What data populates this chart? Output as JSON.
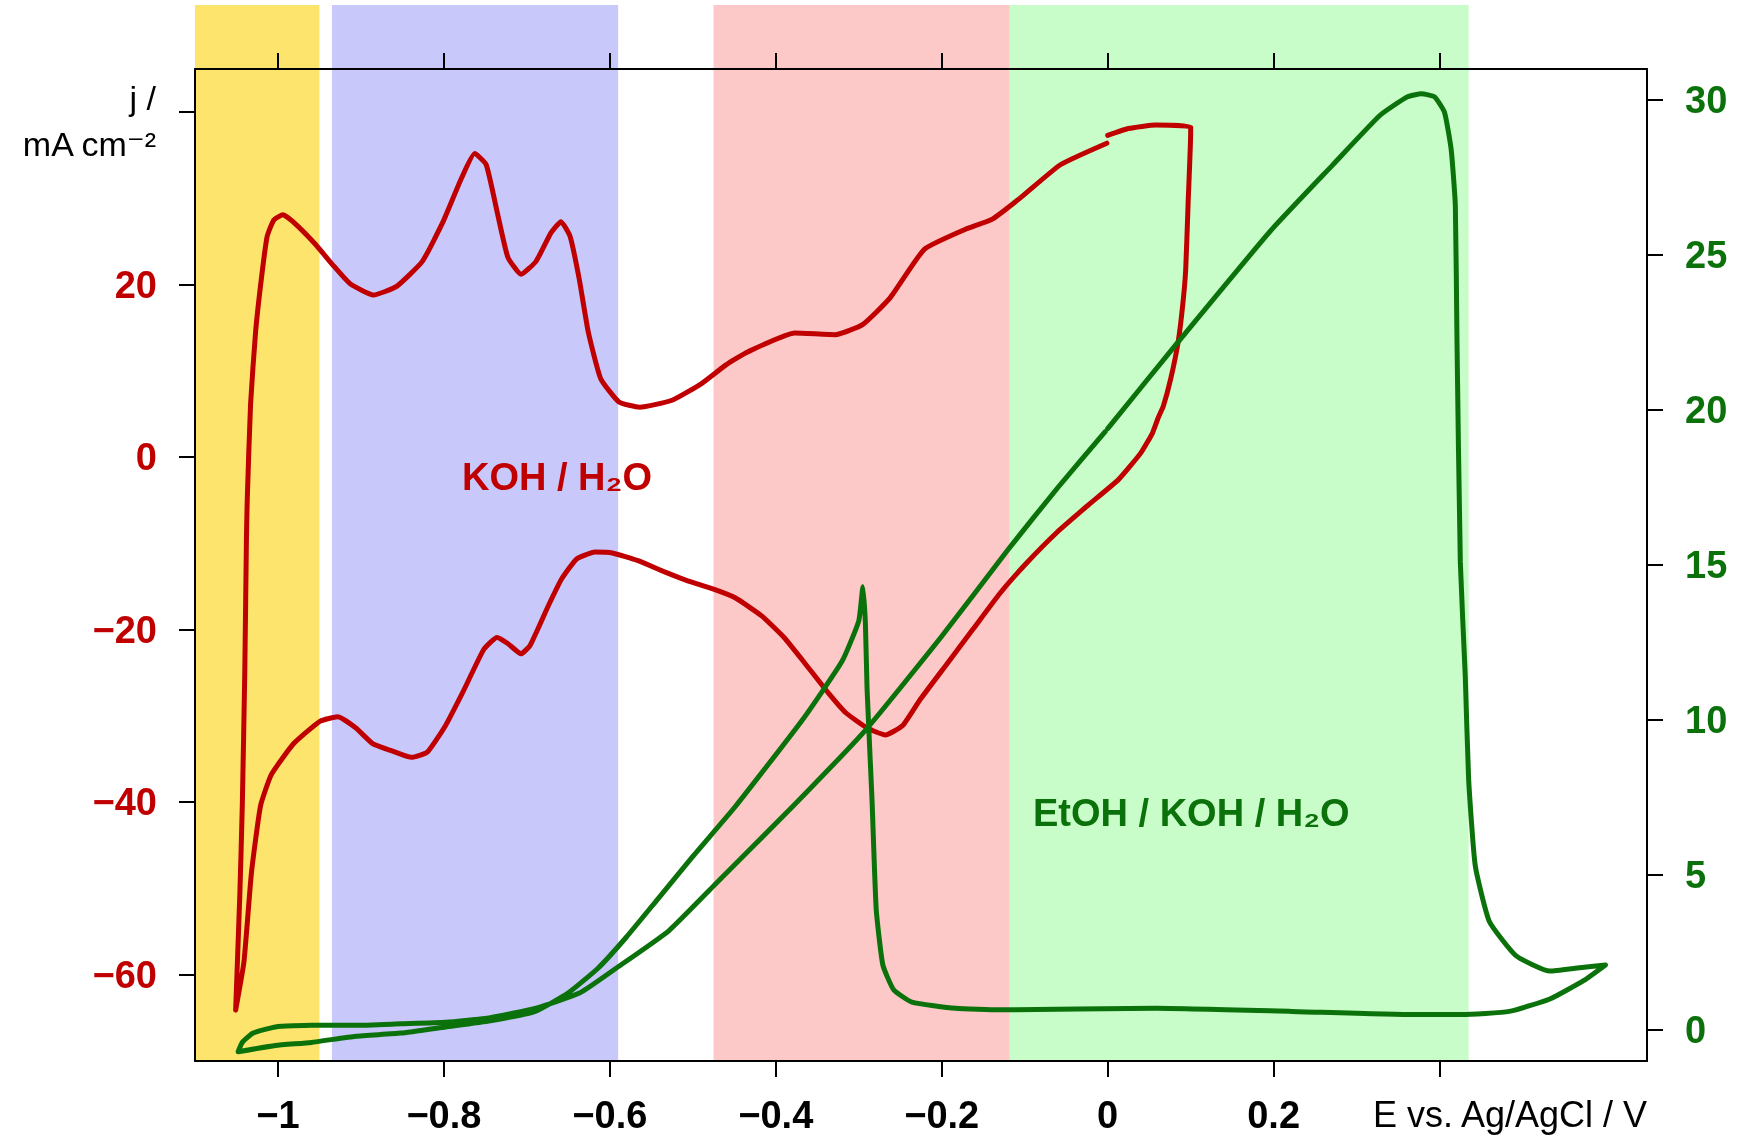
{
  "chart_data": {
    "type": "line",
    "xlabel": "E vs. Ag/AgCl / V",
    "ylabel": "j / mA cm⁻²",
    "xlim": [
      -1.1,
      0.65
    ],
    "xticks": [
      {
        "value": -1,
        "label": "−1"
      },
      {
        "value": -0.8,
        "label": "−0.8"
      },
      {
        "value": -0.6,
        "label": "−0.6"
      },
      {
        "value": -0.4,
        "label": "−0.4"
      },
      {
        "value": -0.2,
        "label": "−0.2"
      },
      0,
      0.2,
      {
        "value": 0.4,
        "label": null
      }
    ],
    "ylim": [
      -70,
      45
    ],
    "yticks": [
      {
        "value": -60,
        "label": "−60"
      },
      {
        "value": -40,
        "label": "−40"
      },
      {
        "value": -20,
        "label": "−20"
      },
      0,
      20,
      {
        "value": 40,
        "label": null
      }
    ],
    "y2lim": [
      -1,
      31
    ],
    "y2ticks": [
      0,
      5,
      10,
      15,
      20,
      25,
      30
    ],
    "grid": false,
    "legend": false,
    "marker": "none",
    "line_style": "solid",
    "bands": [
      {
        "axis": "x",
        "from": -1.1,
        "to": -0.95,
        "color": "#fde46c"
      },
      {
        "axis": "x",
        "from": -0.935,
        "to": -0.59,
        "color": "#c8c8fa"
      },
      {
        "axis": "x",
        "from": -0.475,
        "to": -0.118,
        "color": "#fdc8c8"
      },
      {
        "axis": "x",
        "from": -0.118,
        "to": 0.435,
        "color": "#c8fcc8"
      }
    ],
    "series": [
      {
        "name": "KOH / H₂O",
        "color": "#c00000",
        "x": [
          0.0,
          0.025,
          0.058,
          0.1,
          0.1,
          0.097,
          0.094,
          0.0905,
          0.085,
          0.076,
          0.067,
          0.061,
          0.054,
          0.04,
          0.013,
          -0.024,
          -0.061,
          -0.098,
          -0.13,
          -0.162,
          -0.194,
          -0.226,
          -0.247,
          -0.268,
          -0.29,
          -0.316,
          -0.337,
          -0.364,
          -0.39,
          -0.417,
          -0.449,
          -0.475,
          -0.507,
          -0.534,
          -0.566,
          -0.597,
          -0.618,
          -0.64,
          -0.658,
          -0.674,
          -0.696,
          -0.707,
          -0.723,
          -0.736,
          -0.752,
          -0.776,
          -0.798,
          -0.82,
          -0.839,
          -0.864,
          -0.886,
          -0.906,
          -0.928,
          -0.949,
          -0.981,
          -1.008,
          -1.021,
          -1.032,
          -1.041,
          -1.051,
          -1.046,
          -1.043,
          -1.04,
          -1.038,
          -1.037,
          -1.033,
          -1.027,
          -1.02,
          -1.013,
          -1.005,
          -0.994,
          -0.982,
          -0.956,
          -0.934,
          -0.913,
          -0.885,
          -0.857,
          -0.826,
          -0.801,
          -0.779,
          -0.763,
          -0.749,
          -0.736,
          -0.723,
          -0.707,
          -0.689,
          -0.671,
          -0.659,
          -0.648,
          -0.637,
          -0.626,
          -0.611,
          -0.589,
          -0.564,
          -0.525,
          -0.49,
          -0.46,
          -0.434,
          -0.377,
          -0.328,
          -0.295,
          -0.262,
          -0.221,
          -0.172,
          -0.139,
          -0.106,
          -0.057,
          -0.001
        ],
        "values": [
          37.3,
          38.1,
          38.5,
          38.3,
          37.6,
          29.6,
          21.7,
          17.7,
          13.4,
          9.1,
          5.9,
          4.6,
          2.8,
          0.5,
          -2.6,
          -5.6,
          -8.7,
          -12.3,
          -15.8,
          -19.9,
          -24.0,
          -28.1,
          -31.1,
          -32.2,
          -31.4,
          -29.6,
          -27.3,
          -24.0,
          -20.9,
          -18.4,
          -16.3,
          -15.3,
          -14.3,
          -13.3,
          -12.0,
          -11.1,
          -11.0,
          -11.8,
          -14.1,
          -17.2,
          -21.8,
          -22.8,
          -21.6,
          -20.9,
          -22.3,
          -27.0,
          -31.1,
          -34.2,
          -34.8,
          -34.0,
          -33.2,
          -31.4,
          -30.1,
          -30.6,
          -33.2,
          -36.8,
          -40.4,
          -48.2,
          -58.5,
          -64.1,
          -50.8,
          -40.4,
          -24.9,
          -9.4,
          -4.8,
          6.2,
          14.5,
          20.7,
          25.6,
          27.5,
          28.1,
          27.3,
          24.8,
          22.3,
          20.1,
          18.8,
          19.8,
          22.7,
          27.3,
          32.3,
          35.2,
          33.9,
          28.5,
          23.2,
          21.2,
          22.7,
          26.0,
          27.3,
          25.6,
          20.7,
          14.5,
          9.1,
          6.4,
          5.8,
          6.6,
          8.5,
          10.7,
          12.2,
          14.4,
          14.2,
          15.4,
          18.5,
          24.1,
          26.4,
          27.6,
          30.0,
          33.9,
          36.4
        ]
      },
      {
        "name": "EtOH / KOH / H₂O",
        "color": "#0b720b",
        "axis": "y2",
        "x": [
          0.0,
          0.082,
          0.197,
          0.271,
          0.328,
          0.361,
          0.378,
          0.394,
          0.406,
          0.414,
          0.419,
          0.421,
          0.425,
          0.431,
          0.435,
          0.443,
          0.46,
          0.492,
          0.533,
          0.566,
          0.6,
          0.574,
          0.533,
          0.484,
          0.427,
          0.369,
          0.222,
          0.058,
          -0.13,
          -0.183,
          -0.236,
          -0.258,
          -0.271,
          -0.279,
          -0.284,
          -0.29,
          -0.292,
          -0.295,
          -0.3,
          -0.32,
          -0.368,
          -0.449,
          -0.5,
          -0.543,
          -0.58,
          -0.614,
          -0.65,
          -0.69,
          -0.744,
          -0.798,
          -0.852,
          -0.906,
          -0.96,
          -1.003,
          -1.048,
          -1.043,
          -1.03,
          -1.003,
          -0.96,
          -0.906,
          -0.852,
          -0.798,
          -0.744,
          -0.69,
          -0.636,
          -0.592,
          -0.529,
          -0.473,
          -0.38,
          -0.291,
          -0.2,
          -0.12,
          -0.06,
          -0.003
        ],
        "values": [
          19.4,
          22.1,
          25.8,
          27.9,
          29.5,
          30.1,
          30.2,
          30.1,
          29.6,
          28.4,
          26.6,
          22.2,
          15.1,
          11.4,
          8.1,
          5.3,
          3.5,
          2.4,
          1.9,
          2.0,
          2.1,
          1.6,
          1.0,
          0.6,
          0.5,
          0.5,
          0.6,
          0.7,
          0.65,
          0.7,
          0.9,
          1.3,
          2.1,
          3.9,
          7.4,
          11.0,
          13.1,
          14.3,
          13.2,
          11.9,
          10.0,
          7.2,
          5.6,
          4.2,
          3.0,
          2.0,
          1.2,
          0.6,
          0.3,
          0.1,
          -0.1,
          -0.2,
          -0.4,
          -0.5,
          -0.7,
          -0.4,
          -0.1,
          0.1,
          0.15,
          0.15,
          0.2,
          0.25,
          0.4,
          0.7,
          1.2,
          2.0,
          3.2,
          4.7,
          7.2,
          9.7,
          12.7,
          15.5,
          17.5,
          19.3
        ]
      }
    ]
  }
}
